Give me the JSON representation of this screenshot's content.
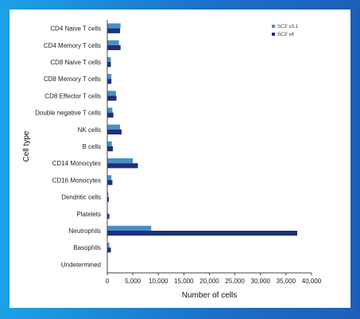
{
  "chart_data": {
    "type": "bar",
    "orientation": "horizontal",
    "categories": [
      "CD4 Naive T cells",
      "CD4 Memory T cells",
      "CD8 Naive T cells",
      "CD8 Memory T cells",
      "CD8 Effector T cells",
      "Double negative T cells",
      "NK cells",
      "B cells",
      "CD14 Monocytes",
      "CD16 Monocytes",
      "Dendritic cells",
      "Platelets",
      "Neutrophils",
      "Basophils",
      "Undetermined"
    ],
    "series": [
      {
        "name": "SC3' v3.1",
        "color": "#4a8fc4",
        "values": [
          2600,
          2300,
          700,
          800,
          1700,
          1000,
          2500,
          900,
          5000,
          800,
          200,
          100,
          8600,
          400,
          0
        ]
      },
      {
        "name": "SC3' v4",
        "color": "#1f2f7a",
        "values": [
          2500,
          2600,
          700,
          800,
          1800,
          1200,
          2800,
          1100,
          6000,
          1000,
          300,
          400,
          37200,
          700,
          0
        ]
      }
    ],
    "xlabel": "Number of cells",
    "ylabel": "Cell type",
    "xlim": [
      0,
      40000
    ],
    "xticks": [
      0,
      5000,
      10000,
      15000,
      20000,
      25000,
      30000,
      35000,
      40000
    ],
    "xtick_labels": [
      "0",
      "5,000",
      "10,000",
      "15,000",
      "20,000",
      "25,000",
      "30,000",
      "35,000",
      "40,000"
    ],
    "legend_position": "top-right",
    "grid": false
  },
  "frame_colors": {
    "border_start": "#1da1e6",
    "border_end": "#1d5fb8"
  }
}
